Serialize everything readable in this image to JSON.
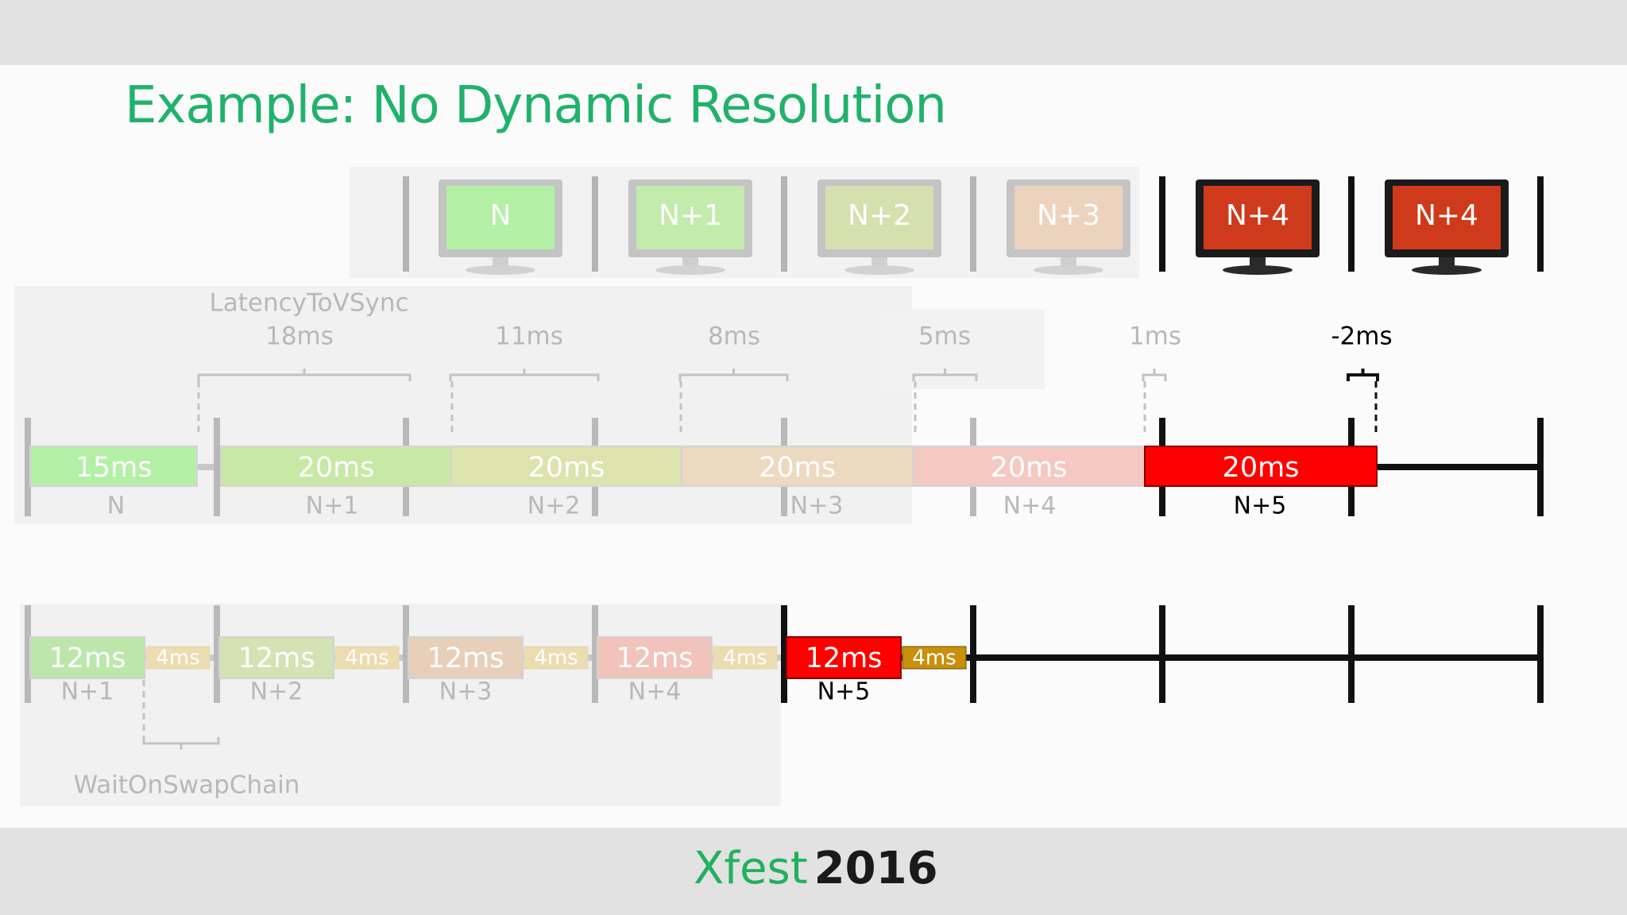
{
  "slide": {
    "title": "Example: No Dynamic Resolution",
    "footer_brand": "Xfest",
    "footer_year": "2016"
  },
  "colors": {
    "title": "#20b26b",
    "frame_n": "#b4efa6",
    "frame_n1": "#c8e8a6",
    "frame_n2": "#dce3ad",
    "frame_n3": "#ecd9c0",
    "frame_n4": "#f4c9c2",
    "active_red": "#ff0000",
    "monitor_red": "#d03a1c",
    "wait_gold": "#c8900c"
  },
  "monitors": [
    {
      "label": "N",
      "active": false,
      "color": "#b4efa6"
    },
    {
      "label": "N+1",
      "active": false,
      "color": "#c3ebac"
    },
    {
      "label": "N+2",
      "active": false,
      "color": "#d5e0ae"
    },
    {
      "label": "N+3",
      "active": false,
      "color": "#ecd3bd"
    },
    {
      "label": "N+4",
      "active": true,
      "color": "#d03a1c"
    },
    {
      "label": "N+4",
      "active": true,
      "color": "#d03a1c"
    }
  ],
  "latency": {
    "label": "LatencyToVSync",
    "values": [
      "18ms",
      "11ms",
      "8ms",
      "5ms",
      "1ms",
      "-2ms"
    ]
  },
  "timeline1": {
    "blocks": [
      {
        "ms": "15ms",
        "frame": "N",
        "color": "#b4efa6",
        "active": false
      },
      {
        "ms": "20ms",
        "frame": "N+1",
        "color": "#c8e8a6",
        "active": false
      },
      {
        "ms": "20ms",
        "frame": "N+2",
        "color": "#dce3ad",
        "active": false
      },
      {
        "ms": "20ms",
        "frame": "N+3",
        "color": "#ecd9c0",
        "active": false
      },
      {
        "ms": "20ms",
        "frame": "N+4",
        "color": "#f4c9c2",
        "active": false
      },
      {
        "ms": "20ms",
        "frame": "N+5",
        "color": "#ff0000",
        "active": true
      }
    ]
  },
  "timeline2": {
    "blocks": [
      {
        "ms": "12ms",
        "wait": "4ms",
        "frame": "N+1",
        "color": "#bde6ab",
        "active": false
      },
      {
        "ms": "12ms",
        "wait": "4ms",
        "frame": "N+2",
        "color": "#d3e3b3",
        "active": false
      },
      {
        "ms": "12ms",
        "wait": "4ms",
        "frame": "N+3",
        "color": "#e7cfba",
        "active": false
      },
      {
        "ms": "12ms",
        "wait": "4ms",
        "frame": "N+4",
        "color": "#f1c3bb",
        "active": false
      },
      {
        "ms": "12ms",
        "wait": "4ms",
        "frame": "N+5",
        "color": "#ff0000",
        "active": true
      }
    ],
    "wait_label": "WaitOnSwapChain"
  }
}
